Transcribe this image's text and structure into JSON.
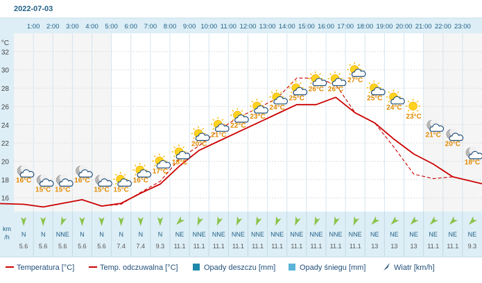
{
  "date": "2022-07-03",
  "y_unit": "°C",
  "wind_unit_line1": "km",
  "wind_unit_line2": "/h",
  "colors": {
    "temp": "#cc0000",
    "felt": "#cc0000",
    "rain": "#1e88aa",
    "snow": "#5ab4d8",
    "label": "#e08a00",
    "wind": "#8bc34a",
    "header_bg": "#ddeef6",
    "plot_bg": "#f5f5f5",
    "day_bg": "#ffffff",
    "wind_bg": "#ddeef6"
  },
  "legend": [
    {
      "key": "temp",
      "label": "Temperatura [°C]"
    },
    {
      "key": "felt",
      "label": "Temp. odczuwalna [°C]"
    },
    {
      "key": "rain",
      "label": "Opady deszczu [mm]"
    },
    {
      "key": "snow",
      "label": "Opady śniegu [mm]"
    },
    {
      "key": "wind",
      "label": "Wiatr [km/h]"
    }
  ],
  "chart_data": {
    "type": "line",
    "x": [
      "1:00",
      "2:00",
      "3:00",
      "4:00",
      "5:00",
      "6:00",
      "7:00",
      "8:00",
      "9:00",
      "10:00",
      "11:00",
      "12:00",
      "13:00",
      "14:00",
      "15:00",
      "16:00",
      "17:00",
      "18:00",
      "19:00",
      "20:00",
      "21:00",
      "22:00",
      "23:00"
    ],
    "yticks": [
      16,
      18,
      20,
      22,
      24,
      26,
      28,
      30,
      32
    ],
    "ylim": [
      14.5,
      34
    ],
    "series": [
      {
        "name": "Temperatura [°C]",
        "style": "solid",
        "values": [
          15.3,
          15.0,
          15.4,
          15.8,
          15.1,
          15.4,
          16.5,
          17.5,
          19.5,
          21.2,
          22.2,
          23.2,
          24.2,
          25.2,
          26.2,
          26.2,
          27.0,
          25.3,
          24.2,
          22.4,
          20.8,
          19.7,
          18.3
        ]
      },
      {
        "name": "Temp. odczuwalna [°C]",
        "style": "dashed",
        "values": [
          15.3,
          15.0,
          15.4,
          15.8,
          15.1,
          15.3,
          16.6,
          17.8,
          20.3,
          21.7,
          23.4,
          24.8,
          25.8,
          26.9,
          29.1,
          29.1,
          28.4,
          25.3,
          24.2,
          21.5,
          18.6,
          18.1,
          18.3
        ]
      }
    ],
    "labels": [
      "16°C",
      "15°C",
      "15°C",
      "16°C",
      "15°C",
      "15°C",
      "16°C",
      "17°C",
      "18°C",
      "20°C",
      "21°C",
      "22°C",
      "23°C",
      "24°C",
      "25°C",
      "26°C",
      "26°C",
      "27°C",
      "25°C",
      "24°C",
      "23°C",
      "21°C",
      "20°C",
      "18°C"
    ],
    "label_values": [
      16,
      15,
      15,
      16,
      15,
      15,
      16,
      17,
      18,
      20,
      21,
      22,
      23,
      24,
      25,
      26,
      26,
      27,
      25,
      24,
      23,
      21,
      20,
      18
    ],
    "icons": [
      "moon-cloud-icon",
      "moon-cloud-icon",
      "moon-cloud-icon",
      "moon-cloud-icon",
      "moon-cloud-icon",
      "sun-cloud-icon",
      "sun-cloud-icon",
      "sun-cloud-icon",
      "sun-cloud-icon",
      "sun-cloud-icon",
      "sun-cloud-icon",
      "sun-cloud-icon",
      "sun-cloud-icon",
      "sun-cloud-icon",
      "sun-cloud-icon",
      "sun-cloud-icon",
      "sun-cloud-icon",
      "sun-cloud-icon",
      "sun-cloud-icon",
      "sun-cloud-icon",
      "sun-icon",
      "moon-cloud-icon",
      "moon-cloud-icon",
      "moon-cloud-icon"
    ],
    "wind_dir": [
      "N",
      "N",
      "NNE",
      "N",
      "N",
      "N",
      "N",
      "N",
      "NE",
      "NNE",
      "NNE",
      "NNE",
      "NNE",
      "NNE",
      "NNE",
      "NNE",
      "NNE",
      "NNE",
      "NE",
      "NE",
      "NE",
      "NE",
      "NE",
      "NE"
    ],
    "wind_deg": [
      0,
      0,
      22,
      0,
      0,
      0,
      0,
      0,
      45,
      22,
      22,
      22,
      22,
      22,
      22,
      22,
      22,
      22,
      45,
      45,
      45,
      45,
      45,
      45
    ],
    "wind_speed": [
      "5.6",
      "5.6",
      "5.6",
      "5.6",
      "5.6",
      "7.4",
      "7.4",
      "9.3",
      "11.1",
      "11.1",
      "11.1",
      "11.1",
      "11.1",
      "11.1",
      "11.1",
      "11.1",
      "11.1",
      "11.1",
      "13",
      "13",
      "13",
      "11.1",
      "11.1",
      "9.3"
    ]
  }
}
